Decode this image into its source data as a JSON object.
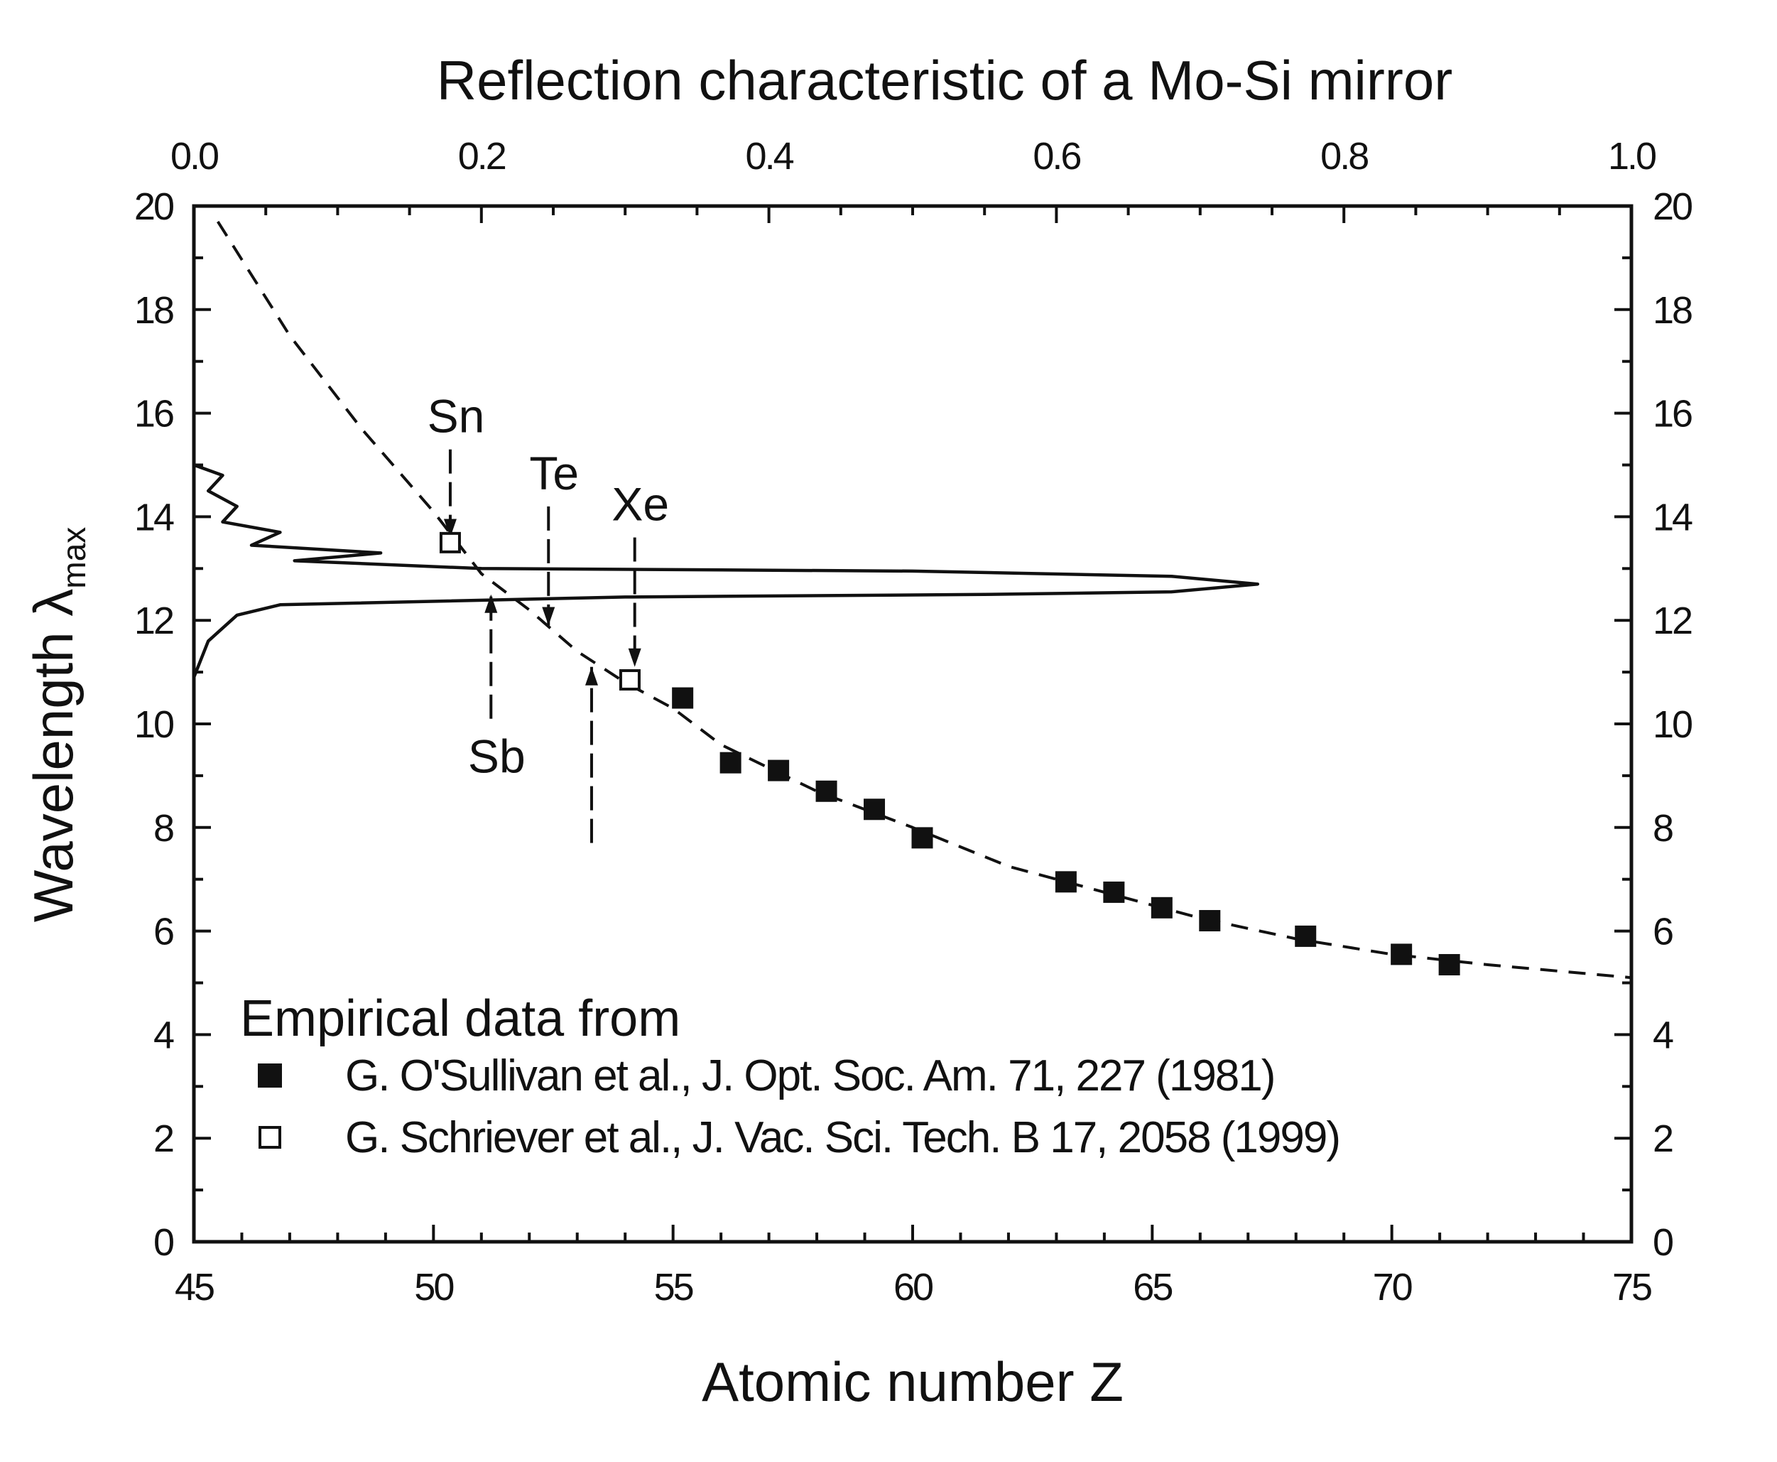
{
  "chart_data": {
    "type": "scatter",
    "title": "Reflection characteristic of a Mo-Si mirror",
    "xlabel": "Atomic number Z",
    "ylabel": "Wavelength λmax",
    "ylabel_main": "Wavelength λ",
    "ylabel_sub": "max",
    "xlim": [
      45,
      75
    ],
    "ylim": [
      0,
      20
    ],
    "top_xlim": [
      0.0,
      1.0
    ],
    "x_ticks": [
      "45",
      "50",
      "55",
      "60",
      "65",
      "70",
      "75"
    ],
    "y_ticks": [
      "0",
      "2",
      "4",
      "6",
      "8",
      "10",
      "12",
      "14",
      "16",
      "18",
      "20"
    ],
    "top_ticks": [
      "0.0",
      "0.2",
      "0.4",
      "0.6",
      "0.8",
      "1.0"
    ],
    "grid": false,
    "legend_heading": "Empirical data from",
    "series": [
      {
        "name": "G. O'Sullivan et al., J. Opt. Soc. Am. 71, 227 (1981)",
        "marker": "filled-square",
        "points": [
          [
            55.2,
            10.5
          ],
          [
            56.2,
            9.25
          ],
          [
            57.2,
            9.1
          ],
          [
            58.2,
            8.7
          ],
          [
            59.2,
            8.35
          ],
          [
            60.2,
            7.8
          ],
          [
            63.2,
            6.95
          ],
          [
            64.2,
            6.75
          ],
          [
            65.2,
            6.45
          ],
          [
            66.2,
            6.2
          ],
          [
            68.2,
            5.9
          ],
          [
            70.2,
            5.55
          ],
          [
            71.2,
            5.35
          ]
        ]
      },
      {
        "name": "G. Schriever et al., J. Vac. Sci. Tech. B 17, 2058 (1999)",
        "marker": "open-square",
        "points": [
          [
            50.35,
            13.5
          ],
          [
            54.1,
            10.85
          ]
        ]
      },
      {
        "name": "",
        "style": "dashed",
        "points": [
          [
            45.5,
            19.7
          ],
          [
            47,
            17.5
          ],
          [
            48.5,
            15.7
          ],
          [
            50,
            14.1
          ],
          [
            51,
            12.9
          ],
          [
            52,
            12.2
          ],
          [
            53,
            11.4
          ],
          [
            54,
            10.8
          ],
          [
            55,
            10.3
          ],
          [
            56,
            9.6
          ],
          [
            58,
            8.7
          ],
          [
            60,
            8.0
          ],
          [
            62,
            7.25
          ],
          [
            64,
            6.75
          ],
          [
            66,
            6.25
          ],
          [
            68,
            5.85
          ],
          [
            70,
            5.55
          ],
          [
            72,
            5.35
          ],
          [
            75,
            5.1
          ]
        ]
      },
      {
        "name": "",
        "style": "solid",
        "axis": "top-x",
        "points": [
          [
            0.0,
            10.9
          ],
          [
            0.01,
            11.6
          ],
          [
            0.03,
            12.1
          ],
          [
            0.06,
            12.3
          ],
          [
            0.3,
            12.45
          ],
          [
            0.55,
            12.5
          ],
          [
            0.68,
            12.55
          ],
          [
            0.74,
            12.7
          ],
          [
            0.68,
            12.85
          ],
          [
            0.5,
            12.95
          ],
          [
            0.2,
            13.0
          ],
          [
            0.07,
            13.15
          ],
          [
            0.13,
            13.3
          ],
          [
            0.04,
            13.45
          ],
          [
            0.06,
            13.7
          ],
          [
            0.02,
            13.9
          ],
          [
            0.03,
            14.2
          ],
          [
            0.01,
            14.5
          ],
          [
            0.02,
            14.8
          ],
          [
            0.0,
            15.0
          ]
        ]
      }
    ],
    "annotations": [
      {
        "text": "Sn",
        "z": 50.35,
        "arrow_from": 15.3,
        "arrow_to": 13.6,
        "direction": "down"
      },
      {
        "text": "Te",
        "z": 52.4,
        "arrow_from": 14.2,
        "arrow_to": 11.9,
        "direction": "down"
      },
      {
        "text": "Xe",
        "z": 54.2,
        "arrow_from": 13.6,
        "arrow_to": 11.1,
        "direction": "down"
      },
      {
        "text": "Sb",
        "z": 51.2,
        "arrow_from": 10.1,
        "arrow_to": 12.5,
        "direction": "up"
      },
      {
        "text": "",
        "z": 53.3,
        "arrow_from": 7.7,
        "arrow_to": 11.1,
        "direction": "up"
      }
    ]
  }
}
